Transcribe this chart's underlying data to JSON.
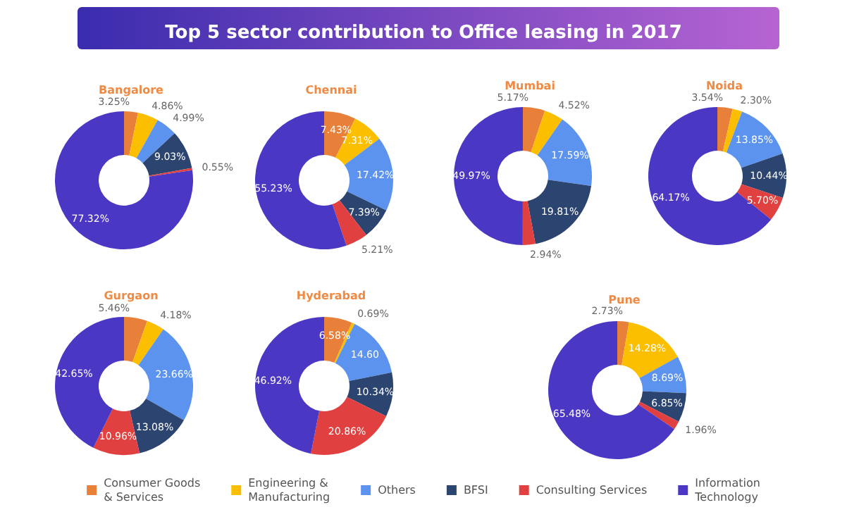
{
  "chart_data": {
    "type": "donut",
    "title": "Top 5 sector contribution to Office leasing in 2017",
    "legend": "bottom",
    "categories": [
      "Consumer Goods & Services",
      "Engineering & Manufacturing",
      "Others",
      "BFSI",
      "Consulting Services",
      "Information Technology"
    ],
    "colors": [
      "#e8803a",
      "#fbbf00",
      "#5b93ef",
      "#2c4470",
      "#e0403f",
      "#4a38c4"
    ],
    "series": [
      {
        "name": "Bangalore",
        "values": [
          3.25,
          4.86,
          4.99,
          9.03,
          0.55,
          77.32
        ],
        "value_labels": [
          "3.25%",
          "4.86%",
          "4.99%",
          "9.03%",
          "0.55%",
          "77.32%"
        ]
      },
      {
        "name": "Chennai",
        "values": [
          7.43,
          7.31,
          17.42,
          7.39,
          5.21,
          55.23
        ],
        "value_labels": [
          "7.43%",
          "7.31%",
          "17.42%",
          "7.39%",
          "5.21%",
          "55.23%"
        ]
      },
      {
        "name": "Mumbai",
        "values": [
          5.17,
          4.52,
          17.59,
          19.81,
          2.94,
          49.97
        ],
        "value_labels": [
          "5.17%",
          "4.52%",
          "17.59%",
          "19.81%",
          "2.94%",
          "49.97%"
        ]
      },
      {
        "name": "Noida",
        "values": [
          3.54,
          2.3,
          13.85,
          10.44,
          5.7,
          64.17
        ],
        "value_labels": [
          "3.54%",
          "2.30%",
          "13.85%",
          "10.44%",
          "5.70%",
          "64.17%"
        ]
      },
      {
        "name": "Gurgaon",
        "values": [
          5.46,
          4.18,
          23.66,
          13.08,
          10.96,
          42.65
        ],
        "value_labels": [
          "5.46%",
          "4.18%",
          "23.66%",
          "13.08%",
          "10.96%",
          "42.65%"
        ]
      },
      {
        "name": "Hyderabad",
        "values": [
          6.58,
          0.69,
          14.6,
          10.34,
          20.86,
          46.92
        ],
        "value_labels": [
          "6.58%",
          "0.69%",
          "14.60",
          "10.34%",
          "20.86%",
          "46.92%"
        ]
      },
      {
        "name": "Pune",
        "values": [
          2.73,
          14.28,
          8.69,
          6.85,
          1.96,
          65.48
        ],
        "value_labels": [
          "2.73%",
          "14.28%",
          "8.69%",
          "6.85%",
          "1.96%",
          "65.48%"
        ]
      }
    ]
  }
}
